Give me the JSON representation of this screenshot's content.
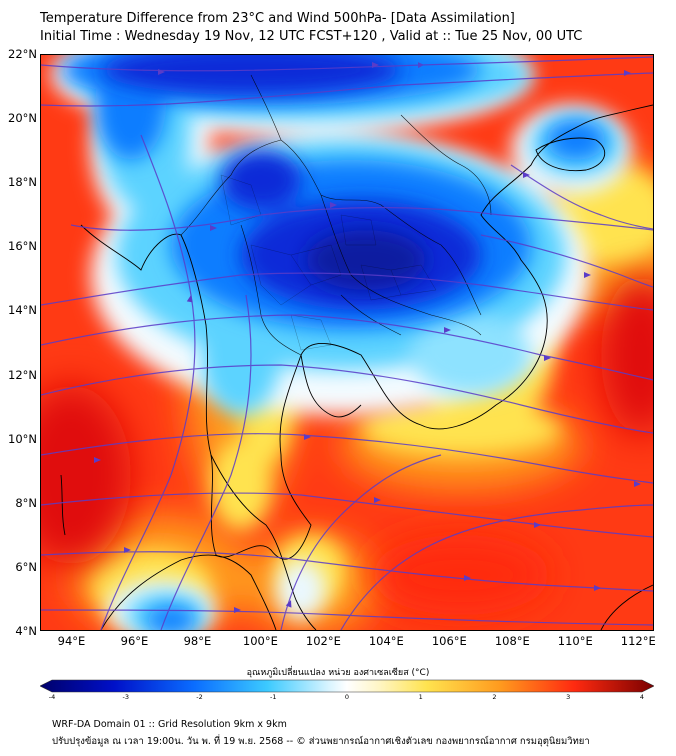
{
  "title": {
    "line1": "Temperature Difference from 23°C and Wind 500hPa- [Data Assimilation]",
    "line2": "Initial Time : Wednesday 19 Nov, 12 UTC FCST+120 , Valid at ::  Tue 25 Nov, 00 UTC"
  },
  "map": {
    "lat_labels": [
      "22°N",
      "20°N",
      "18°N",
      "16°N",
      "14°N",
      "12°N",
      "10°N",
      "8°N",
      "6°N",
      "4°N"
    ],
    "lon_labels": [
      "94°E",
      "96°E",
      "98°E",
      "100°E",
      "102°E",
      "104°E",
      "106°E",
      "108°E",
      "110°E",
      "112°E"
    ],
    "colors": {
      "extreme_warm": "#d80000",
      "warm": "#ff3a14",
      "orange": "#ff9a1e",
      "yellow": "#ffe34f",
      "neutral": "#ffffff",
      "cool": "#5bd3ff",
      "cold": "#0a7dff",
      "very_cold": "#0a2ad8",
      "coldest": "#0a1aa0",
      "streamline": "#5a3cc8",
      "coastline": "#000000"
    },
    "anomaly_cores": [
      {
        "region": "interior-indochina",
        "lat": 15.8,
        "lon": 103.0,
        "value": -3.2
      },
      {
        "region": "north-laos",
        "lat": 19.0,
        "lon": 101.5,
        "value": -2.5
      },
      {
        "region": "bay-of-bengal-north",
        "lat": 21.5,
        "lon": 96.5,
        "value": -2.2
      },
      {
        "region": "hainan",
        "lat": 19.5,
        "lon": 110.0,
        "value": -1.5
      },
      {
        "region": "south-china-sea",
        "lat": 13.0,
        "lon": 111.5,
        "value": 3.0
      },
      {
        "region": "andaman-sea",
        "lat": 10.0,
        "lon": 95.0,
        "value": 3.2
      },
      {
        "region": "gulf-of-thailand",
        "lat": 8.0,
        "lon": 102.0,
        "value": 3.0
      },
      {
        "region": "sumatra-north",
        "lat": 4.5,
        "lon": 97.0,
        "value": -1.8
      }
    ]
  },
  "colorbar": {
    "title": "อุณหภูมิเปลี่ยนแปลง หน่วย องศาเซลเซียส (°C)",
    "ticks": [
      "-4",
      "-3",
      "-2",
      "-1",
      "0",
      "1",
      "2",
      "3",
      "4"
    ],
    "min": -4,
    "max": 4
  },
  "footer": {
    "line1": "WRF-DA Domain 01 :: Grid Resolution 9km x 9km",
    "line2": "ปรับปรุงข้อมูล ณ เวลา 19:00น. วัน พ. ที่ 19 พ.ย. 2568 -- © ส่วนพยากรณ์อากาศเชิงตัวเลข กองพยากรณ์อากาศ กรมอุตุนิยมวิทยา"
  }
}
